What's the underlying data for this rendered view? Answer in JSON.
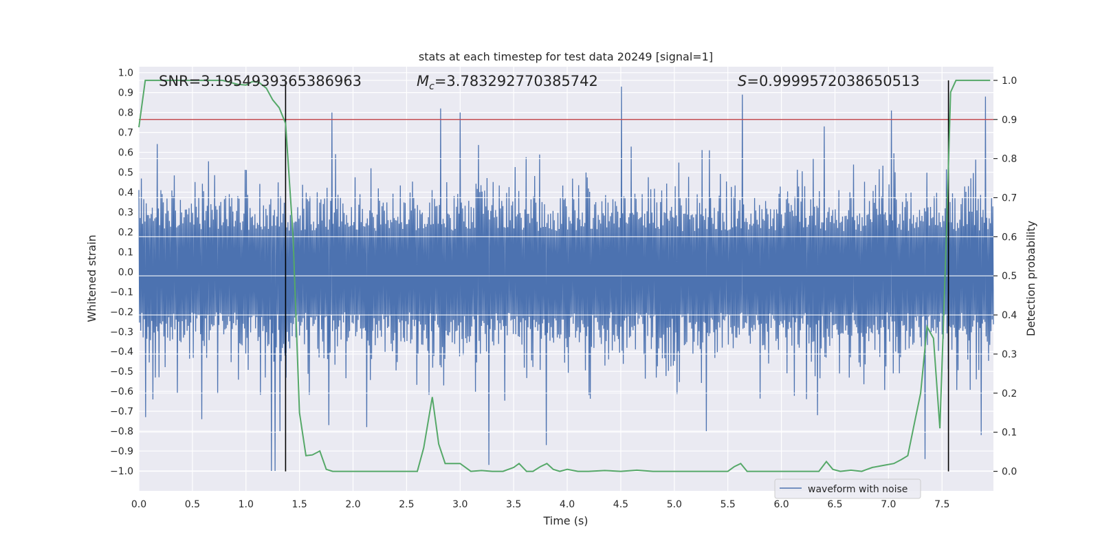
{
  "chart_data": {
    "type": "line",
    "title": "stats at each timestep for test data 20249 [signal=1]",
    "xlabel": "Time (s)",
    "ylabel_left": "Whitened strain",
    "ylabel_right": "Detection probability",
    "xlim": [
      0.0,
      7.98
    ],
    "ylim_left": [
      -1.1,
      1.03
    ],
    "ylim_right": [
      -0.05,
      1.035
    ],
    "x_ticks": [
      "0.0",
      "0.5",
      "1.0",
      "1.5",
      "2.0",
      "2.5",
      "3.0",
      "3.5",
      "4.0",
      "4.5",
      "5.0",
      "5.5",
      "6.0",
      "6.5",
      "7.0",
      "7.5"
    ],
    "x_tick_values": [
      0.0,
      0.5,
      1.0,
      1.5,
      2.0,
      2.5,
      3.0,
      3.5,
      4.0,
      4.5,
      5.0,
      5.5,
      6.0,
      6.5,
      7.0,
      7.5
    ],
    "y_left_ticks": [
      "1.0",
      "0.9",
      "0.8",
      "0.7",
      "0.6",
      "0.5",
      "0.4",
      "0.3",
      "0.2",
      "0.1",
      "0.0",
      "−0.1",
      "−0.2",
      "−0.3",
      "−0.4",
      "−0.5",
      "−0.6",
      "−0.7",
      "−0.8",
      "−0.9",
      "−1.0"
    ],
    "y_left_tick_values": [
      1.0,
      0.9,
      0.8,
      0.7,
      0.6,
      0.5,
      0.4,
      0.3,
      0.2,
      0.1,
      0.0,
      -0.1,
      -0.2,
      -0.3,
      -0.4,
      -0.5,
      -0.6,
      -0.7,
      -0.8,
      -0.9,
      -1.0
    ],
    "y_right_ticks": [
      "1.0",
      "0.9",
      "0.8",
      "0.7",
      "0.6",
      "0.5",
      "0.4",
      "0.3",
      "0.2",
      "0.1",
      "0.0"
    ],
    "y_right_tick_values": [
      1.0,
      0.9,
      0.8,
      0.7,
      0.6,
      0.5,
      0.4,
      0.3,
      0.2,
      0.1,
      0.0
    ],
    "annotations": {
      "snr": "SNR=3.1954939365386963",
      "mc_symbol": "M",
      "mc_sub": "c",
      "mc_value": "=3.783292770385742",
      "s_symbol": "S",
      "s_value": "=0.9999572038650513"
    },
    "legend": {
      "label": "waveform with noise",
      "placement": "lower-right"
    },
    "threshold": {
      "value": 0.9,
      "axis": "right",
      "color": "#c44e52"
    },
    "vertical_markers": [
      1.37,
      7.56
    ],
    "waveform": {
      "name": "waveform with noise",
      "color": "#4c72b0",
      "n_samples": 1400,
      "typical_amplitude": 0.37,
      "spikes": [
        {
          "x": 1.24,
          "y": -1.0
        },
        {
          "x": 1.27,
          "y": -1.0
        },
        {
          "x": 1.32,
          "y": -0.8
        },
        {
          "x": 1.8,
          "y": 0.8
        },
        {
          "x": 1.77,
          "y": -0.77
        },
        {
          "x": 2.13,
          "y": -0.78
        },
        {
          "x": 2.82,
          "y": 0.82
        },
        {
          "x": 3.0,
          "y": 0.8
        },
        {
          "x": 3.27,
          "y": -0.97
        },
        {
          "x": 3.8,
          "y": -0.87
        },
        {
          "x": 4.5,
          "y": 0.93
        },
        {
          "x": 5.63,
          "y": 0.89
        },
        {
          "x": 5.3,
          "y": -0.8
        },
        {
          "x": 6.4,
          "y": 0.73
        },
        {
          "x": 7.02,
          "y": 0.81
        },
        {
          "x": 7.34,
          "y": -0.94
        },
        {
          "x": 7.9,
          "y": 0.88
        },
        {
          "x": 7.86,
          "y": -0.82
        },
        {
          "x": 0.58,
          "y": -0.74
        },
        {
          "x": 0.06,
          "y": -0.73
        },
        {
          "x": 6.34,
          "y": -0.72
        }
      ]
    },
    "series": [
      {
        "name": "Detection probability",
        "axis": "right",
        "color": "#55a868",
        "x": [
          0.0,
          0.06,
          0.12,
          0.25,
          0.4,
          0.6,
          0.78,
          0.85,
          0.92,
          1.0,
          1.06,
          1.12,
          1.19,
          1.25,
          1.31,
          1.37,
          1.44,
          1.5,
          1.56,
          1.62,
          1.69,
          1.75,
          1.81,
          1.9,
          2.0,
          2.2,
          2.4,
          2.6,
          2.66,
          2.74,
          2.8,
          2.86,
          2.93,
          3.0,
          3.1,
          3.2,
          3.3,
          3.4,
          3.5,
          3.55,
          3.62,
          3.68,
          3.75,
          3.81,
          3.87,
          3.93,
          4.0,
          4.1,
          4.2,
          4.35,
          4.5,
          4.65,
          4.8,
          4.9,
          5.0,
          5.2,
          5.4,
          5.5,
          5.56,
          5.62,
          5.68,
          5.75,
          5.85,
          6.0,
          6.2,
          6.35,
          6.42,
          6.48,
          6.55,
          6.65,
          6.75,
          6.8,
          6.85,
          6.95,
          7.05,
          7.12,
          7.18,
          7.24,
          7.3,
          7.36,
          7.42,
          7.48,
          7.54,
          7.58,
          7.63,
          7.7,
          7.8,
          7.95
        ],
        "y": [
          0.88,
          1.0,
          1.0,
          1.0,
          1.0,
          1.0,
          1.0,
          0.995,
          0.99,
          0.988,
          0.997,
          0.995,
          0.98,
          0.95,
          0.93,
          0.89,
          0.6,
          0.15,
          0.04,
          0.042,
          0.052,
          0.005,
          0.0,
          0.0,
          0.0,
          0.0,
          0.0,
          0.0,
          0.06,
          0.19,
          0.07,
          0.02,
          0.02,
          0.02,
          0.0,
          0.002,
          0.0,
          0.0,
          0.01,
          0.02,
          0.0,
          0.0,
          0.012,
          0.02,
          0.005,
          0.0,
          0.005,
          0.0,
          0.0,
          0.002,
          0.0,
          0.003,
          0.0,
          0.0,
          0.0,
          0.0,
          0.0,
          0.0,
          0.012,
          0.02,
          0.0,
          0.0,
          0.0,
          0.0,
          0.0,
          0.0,
          0.025,
          0.005,
          0.0,
          0.003,
          0.0,
          0.005,
          0.01,
          0.015,
          0.02,
          0.03,
          0.04,
          0.12,
          0.2,
          0.37,
          0.34,
          0.11,
          0.6,
          0.97,
          1.0,
          1.0,
          1.0,
          1.0
        ]
      }
    ]
  }
}
